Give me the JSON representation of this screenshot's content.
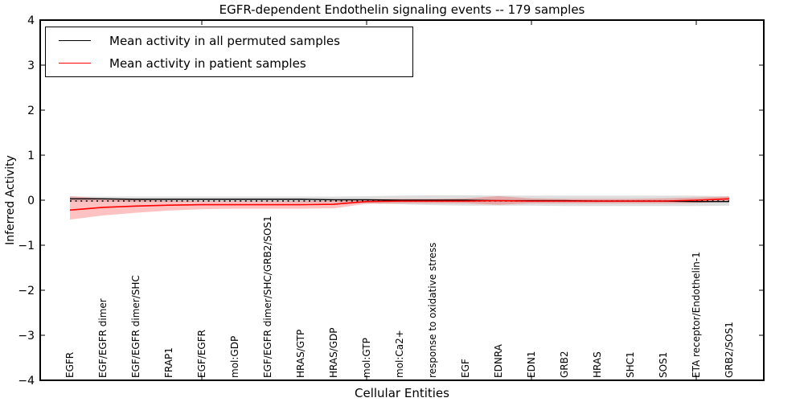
{
  "figure": {
    "title": "EGFR-dependent Endothelin signaling events -- 179 samples",
    "xlabel": "Cellular Entities",
    "ylabel": "Inferred Activity"
  },
  "legend": {
    "position": "upper left",
    "entries": [
      {
        "label": "Mean activity in all permuted samples",
        "color": "#000000"
      },
      {
        "label": "Mean activity in patient samples",
        "color": "#ff0000"
      }
    ]
  },
  "chart_data": {
    "type": "line",
    "title": "EGFR-dependent Endothelin signaling events -- 179 samples",
    "xlabel": "Cellular Entities",
    "ylabel": "Inferred Activity",
    "ylim": [
      -4,
      4
    ],
    "yticks": [
      4,
      3,
      2,
      1,
      0,
      -1,
      -2,
      -3,
      -4
    ],
    "yticklabels": [
      "4",
      "3",
      "2",
      "1",
      "0",
      "−1",
      "−2",
      "−3",
      "−4"
    ],
    "xtick_category_numbers": [
      5,
      10,
      15,
      20
    ],
    "grid": false,
    "legend_position": "upper left",
    "zero_line": {
      "style": "dashed",
      "color": "#000000",
      "y": 0
    },
    "categories": [
      "EGFR",
      "EGF/EGFR dimer",
      "EGF/EGFR dimer/SHC",
      "FRAP1",
      "EGF/EGFR",
      "mol:GDP",
      "EGF/EGFR dimer/SHC/GRB2/SOS1",
      "HRAS/GTP",
      "HRAS/GDP",
      "mol:GTP",
      "mol:Ca2+",
      "response to oxidative stress",
      "EGF",
      "EDNRA",
      "EDN1",
      "GRB2",
      "HRAS",
      "SHC1",
      "SOS1",
      "ETA receptor/Endothelin-1",
      "GRB2/SOS1"
    ],
    "series": [
      {
        "name": "Mean activity in all permuted samples",
        "color": "#000000",
        "band_color": "#dedede",
        "values": [
          0.03,
          0.03,
          0.02,
          0.02,
          0.02,
          0.02,
          0.02,
          0.02,
          0.01,
          0.01,
          0.0,
          0.0,
          0.0,
          -0.01,
          -0.01,
          -0.01,
          -0.02,
          -0.02,
          -0.02,
          -0.03,
          -0.03
        ],
        "band_upper": [
          0.08,
          0.08,
          0.08,
          0.08,
          0.08,
          0.08,
          0.08,
          0.08,
          0.08,
          0.09,
          0.1,
          0.11,
          0.11,
          0.1,
          0.1,
          0.1,
          0.1,
          0.1,
          0.1,
          0.1,
          0.09
        ],
        "band_lower": [
          -0.03,
          -0.03,
          -0.04,
          -0.04,
          -0.04,
          -0.04,
          -0.04,
          -0.05,
          -0.05,
          -0.07,
          -0.09,
          -0.11,
          -0.12,
          -0.12,
          -0.12,
          -0.13,
          -0.13,
          -0.13,
          -0.13,
          -0.13,
          -0.12
        ]
      },
      {
        "name": "Mean activity in patient samples",
        "color": "#ff0000",
        "band_color": "rgba(255,0,0,0.24)",
        "values": [
          -0.22,
          -0.16,
          -0.13,
          -0.11,
          -0.1,
          -0.1,
          -0.1,
          -0.1,
          -0.09,
          -0.03,
          -0.02,
          -0.02,
          -0.02,
          -0.01,
          -0.02,
          -0.02,
          -0.02,
          -0.02,
          -0.02,
          0.0,
          0.03
        ],
        "band_upper": [
          0.09,
          0.04,
          0.01,
          -0.01,
          -0.02,
          -0.02,
          -0.02,
          -0.02,
          -0.01,
          0.02,
          0.03,
          0.03,
          0.04,
          0.09,
          0.04,
          0.03,
          0.03,
          0.03,
          0.04,
          0.06,
          0.08
        ],
        "band_lower": [
          -0.43,
          -0.34,
          -0.28,
          -0.23,
          -0.2,
          -0.19,
          -0.19,
          -0.19,
          -0.18,
          -0.08,
          -0.07,
          -0.07,
          -0.07,
          -0.1,
          -0.07,
          -0.07,
          -0.07,
          -0.07,
          -0.07,
          -0.06,
          -0.03
        ]
      }
    ]
  }
}
